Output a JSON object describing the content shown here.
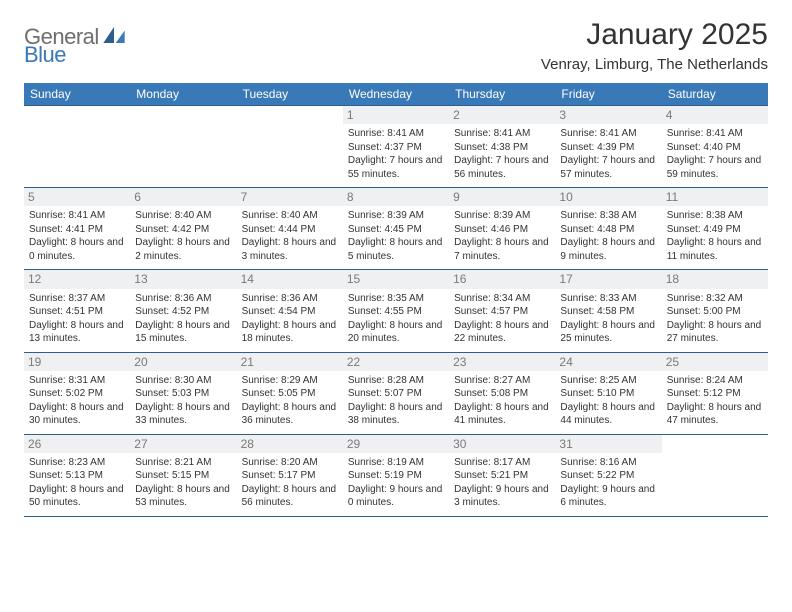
{
  "logo": {
    "text1": "General",
    "text2": "Blue",
    "text1_color": "#6e6e6e",
    "text2_color": "#3a79b7",
    "shape_color": "#2d5e8f"
  },
  "header": {
    "month_title": "January 2025",
    "location": "Venray, Limburg, The Netherlands"
  },
  "colors": {
    "header_bg": "#3a79b7",
    "header_text": "#ffffff",
    "cell_border": "#2d5e8f",
    "daynum_bg": "#eef0f2",
    "daynum_text": "#7a7a7a",
    "body_text": "#333333"
  },
  "weekdays": [
    "Sunday",
    "Monday",
    "Tuesday",
    "Wednesday",
    "Thursday",
    "Friday",
    "Saturday"
  ],
  "weeks": [
    [
      null,
      null,
      null,
      {
        "n": "1",
        "sunrise": "8:41 AM",
        "sunset": "4:37 PM",
        "daylight": "7 hours and 55 minutes."
      },
      {
        "n": "2",
        "sunrise": "8:41 AM",
        "sunset": "4:38 PM",
        "daylight": "7 hours and 56 minutes."
      },
      {
        "n": "3",
        "sunrise": "8:41 AM",
        "sunset": "4:39 PM",
        "daylight": "7 hours and 57 minutes."
      },
      {
        "n": "4",
        "sunrise": "8:41 AM",
        "sunset": "4:40 PM",
        "daylight": "7 hours and 59 minutes."
      }
    ],
    [
      {
        "n": "5",
        "sunrise": "8:41 AM",
        "sunset": "4:41 PM",
        "daylight": "8 hours and 0 minutes."
      },
      {
        "n": "6",
        "sunrise": "8:40 AM",
        "sunset": "4:42 PM",
        "daylight": "8 hours and 2 minutes."
      },
      {
        "n": "7",
        "sunrise": "8:40 AM",
        "sunset": "4:44 PM",
        "daylight": "8 hours and 3 minutes."
      },
      {
        "n": "8",
        "sunrise": "8:39 AM",
        "sunset": "4:45 PM",
        "daylight": "8 hours and 5 minutes."
      },
      {
        "n": "9",
        "sunrise": "8:39 AM",
        "sunset": "4:46 PM",
        "daylight": "8 hours and 7 minutes."
      },
      {
        "n": "10",
        "sunrise": "8:38 AM",
        "sunset": "4:48 PM",
        "daylight": "8 hours and 9 minutes."
      },
      {
        "n": "11",
        "sunrise": "8:38 AM",
        "sunset": "4:49 PM",
        "daylight": "8 hours and 11 minutes."
      }
    ],
    [
      {
        "n": "12",
        "sunrise": "8:37 AM",
        "sunset": "4:51 PM",
        "daylight": "8 hours and 13 minutes."
      },
      {
        "n": "13",
        "sunrise": "8:36 AM",
        "sunset": "4:52 PM",
        "daylight": "8 hours and 15 minutes."
      },
      {
        "n": "14",
        "sunrise": "8:36 AM",
        "sunset": "4:54 PM",
        "daylight": "8 hours and 18 minutes."
      },
      {
        "n": "15",
        "sunrise": "8:35 AM",
        "sunset": "4:55 PM",
        "daylight": "8 hours and 20 minutes."
      },
      {
        "n": "16",
        "sunrise": "8:34 AM",
        "sunset": "4:57 PM",
        "daylight": "8 hours and 22 minutes."
      },
      {
        "n": "17",
        "sunrise": "8:33 AM",
        "sunset": "4:58 PM",
        "daylight": "8 hours and 25 minutes."
      },
      {
        "n": "18",
        "sunrise": "8:32 AM",
        "sunset": "5:00 PM",
        "daylight": "8 hours and 27 minutes."
      }
    ],
    [
      {
        "n": "19",
        "sunrise": "8:31 AM",
        "sunset": "5:02 PM",
        "daylight": "8 hours and 30 minutes."
      },
      {
        "n": "20",
        "sunrise": "8:30 AM",
        "sunset": "5:03 PM",
        "daylight": "8 hours and 33 minutes."
      },
      {
        "n": "21",
        "sunrise": "8:29 AM",
        "sunset": "5:05 PM",
        "daylight": "8 hours and 36 minutes."
      },
      {
        "n": "22",
        "sunrise": "8:28 AM",
        "sunset": "5:07 PM",
        "daylight": "8 hours and 38 minutes."
      },
      {
        "n": "23",
        "sunrise": "8:27 AM",
        "sunset": "5:08 PM",
        "daylight": "8 hours and 41 minutes."
      },
      {
        "n": "24",
        "sunrise": "8:25 AM",
        "sunset": "5:10 PM",
        "daylight": "8 hours and 44 minutes."
      },
      {
        "n": "25",
        "sunrise": "8:24 AM",
        "sunset": "5:12 PM",
        "daylight": "8 hours and 47 minutes."
      }
    ],
    [
      {
        "n": "26",
        "sunrise": "8:23 AM",
        "sunset": "5:13 PM",
        "daylight": "8 hours and 50 minutes."
      },
      {
        "n": "27",
        "sunrise": "8:21 AM",
        "sunset": "5:15 PM",
        "daylight": "8 hours and 53 minutes."
      },
      {
        "n": "28",
        "sunrise": "8:20 AM",
        "sunset": "5:17 PM",
        "daylight": "8 hours and 56 minutes."
      },
      {
        "n": "29",
        "sunrise": "8:19 AM",
        "sunset": "5:19 PM",
        "daylight": "9 hours and 0 minutes."
      },
      {
        "n": "30",
        "sunrise": "8:17 AM",
        "sunset": "5:21 PM",
        "daylight": "9 hours and 3 minutes."
      },
      {
        "n": "31",
        "sunrise": "8:16 AM",
        "sunset": "5:22 PM",
        "daylight": "9 hours and 6 minutes."
      },
      null
    ]
  ],
  "labels": {
    "sunrise": "Sunrise:",
    "sunset": "Sunset:",
    "daylight": "Daylight:"
  }
}
